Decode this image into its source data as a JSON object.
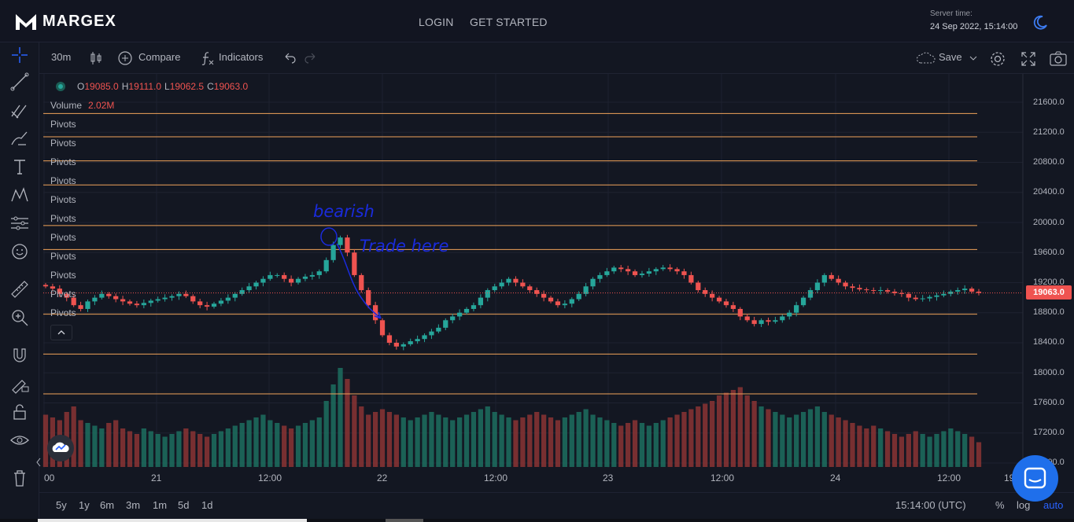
{
  "app": {
    "brand": "MARGEX"
  },
  "topnav": {
    "login": "LOGIN",
    "get_started": "GET STARTED"
  },
  "server": {
    "label": "Server time:",
    "value": "24 Sep 2022, 15:14:00"
  },
  "toolbar": {
    "interval": "30m",
    "compare": "Compare",
    "indicators": "Indicators",
    "save": "Save"
  },
  "legend": {
    "o_key": "O",
    "o": "19085.0",
    "h_key": "H",
    "h": "19111.0",
    "l_key": "L",
    "l": "19062.5",
    "c_key": "C",
    "c": "19063.0",
    "volume_label": "Volume",
    "volume_value": "2.02M"
  },
  "pivot_labels": [
    "Pivots",
    "Pivots",
    "Pivots",
    "Pivots",
    "Pivots",
    "Pivots",
    "Pivots",
    "Pivots",
    "Pivots",
    "Pivots",
    "Pivots"
  ],
  "price_axis": [
    "21600.0",
    "21200.0",
    "20800.0",
    "20400.0",
    "20000.0",
    "19600.0",
    "19200.0",
    "18800.0",
    "18400.0",
    "18000.0",
    "17600.0",
    "17200.0",
    "16800.0"
  ],
  "current_price": "19063.0",
  "time_axis": [
    "00",
    "21",
    "12:00",
    "22",
    "12:00",
    "23",
    "12:00",
    "24",
    "12:00",
    "19"
  ],
  "annotation": {
    "line1": "bearish",
    "line2": "Trade here"
  },
  "ranges": [
    "5y",
    "1y",
    "6m",
    "3m",
    "1m",
    "5d",
    "1d"
  ],
  "bottom": {
    "clock": "15:14:00 (UTC)",
    "percent": "%",
    "log": "log",
    "auto": "auto"
  },
  "colors": {
    "up": "#26a69a",
    "down": "#ef5350",
    "pivot": "#f0a35a",
    "annotation": "#1a2bdc",
    "accent": "#2962ff"
  },
  "chart_data": {
    "type": "candlestick",
    "symbol_interval": "30m",
    "ylim": [
      16800,
      21700
    ],
    "pivot_levels": [
      21450,
      21140,
      20820,
      20500,
      19960,
      19640,
      18780,
      18250,
      17720
    ],
    "close_series": [
      19150,
      19120,
      19050,
      19000,
      18900,
      18850,
      18950,
      19000,
      19050,
      19020,
      18980,
      18950,
      18920,
      18900,
      18930,
      18960,
      18980,
      19000,
      19020,
      19050,
      19020,
      18950,
      18900,
      18880,
      18920,
      18960,
      19000,
      19050,
      19100,
      19150,
      19200,
      19250,
      19300,
      19300,
      19250,
      19200,
      19250,
      19280,
      19300,
      19350,
      19500,
      19700,
      19800,
      19600,
      19300,
      19100,
      18900,
      18700,
      18500,
      18400,
      18350,
      18380,
      18420,
      18450,
      18500,
      18550,
      18600,
      18700,
      18750,
      18800,
      18850,
      18900,
      19000,
      19100,
      19150,
      19200,
      19250,
      19200,
      19150,
      19100,
      19050,
      19000,
      18950,
      18900,
      18920,
      18980,
      19050,
      19150,
      19250,
      19300,
      19350,
      19400,
      19380,
      19350,
      19300,
      19320,
      19350,
      19380,
      19400,
      19380,
      19350,
      19300,
      19200,
      19100,
      19050,
      19000,
      18950,
      18900,
      18850,
      18750,
      18700,
      18650,
      18700,
      18680,
      18700,
      18750,
      18800,
      18900,
      19000,
      19100,
      19200,
      19300,
      19250,
      19200,
      19150,
      19130,
      19110,
      19100,
      19090,
      19100,
      19080,
      19060,
      19050,
      19000,
      18980,
      18990,
      19010,
      19030,
      19050,
      19080,
      19100,
      19120,
      19080,
      19063
    ],
    "volume_series": [
      0.95,
      0.9,
      0.85,
      1.0,
      1.1,
      0.85,
      0.8,
      0.75,
      0.7,
      0.8,
      0.85,
      0.7,
      0.65,
      0.6,
      0.7,
      0.65,
      0.6,
      0.55,
      0.6,
      0.65,
      0.7,
      0.65,
      0.6,
      0.55,
      0.6,
      0.65,
      0.7,
      0.75,
      0.8,
      0.85,
      0.9,
      0.95,
      0.85,
      0.8,
      0.75,
      0.7,
      0.75,
      0.8,
      0.85,
      0.9,
      1.2,
      1.5,
      1.8,
      1.6,
      1.3,
      1.1,
      0.95,
      1.0,
      1.05,
      1.0,
      0.95,
      0.9,
      0.85,
      0.9,
      0.95,
      1.0,
      0.95,
      0.9,
      0.85,
      0.9,
      0.95,
      1.0,
      1.05,
      1.1,
      1.0,
      0.95,
      0.9,
      0.85,
      0.9,
      0.95,
      1.0,
      0.95,
      0.9,
      0.85,
      0.9,
      0.95,
      1.0,
      1.05,
      0.95,
      0.9,
      0.85,
      0.8,
      0.75,
      0.8,
      0.85,
      0.8,
      0.75,
      0.8,
      0.85,
      0.9,
      0.95,
      1.0,
      1.05,
      1.1,
      1.15,
      1.2,
      1.3,
      1.35,
      1.4,
      1.45,
      1.3,
      1.2,
      1.1,
      1.05,
      1.0,
      0.95,
      0.9,
      0.95,
      1.0,
      1.05,
      1.1,
      1.0,
      0.95,
      0.9,
      0.85,
      0.8,
      0.75,
      0.7,
      0.75,
      0.7,
      0.65,
      0.6,
      0.55,
      0.6,
      0.65,
      0.6,
      0.55,
      0.6,
      0.65,
      0.7,
      0.65,
      0.6,
      0.55,
      0.45
    ]
  }
}
